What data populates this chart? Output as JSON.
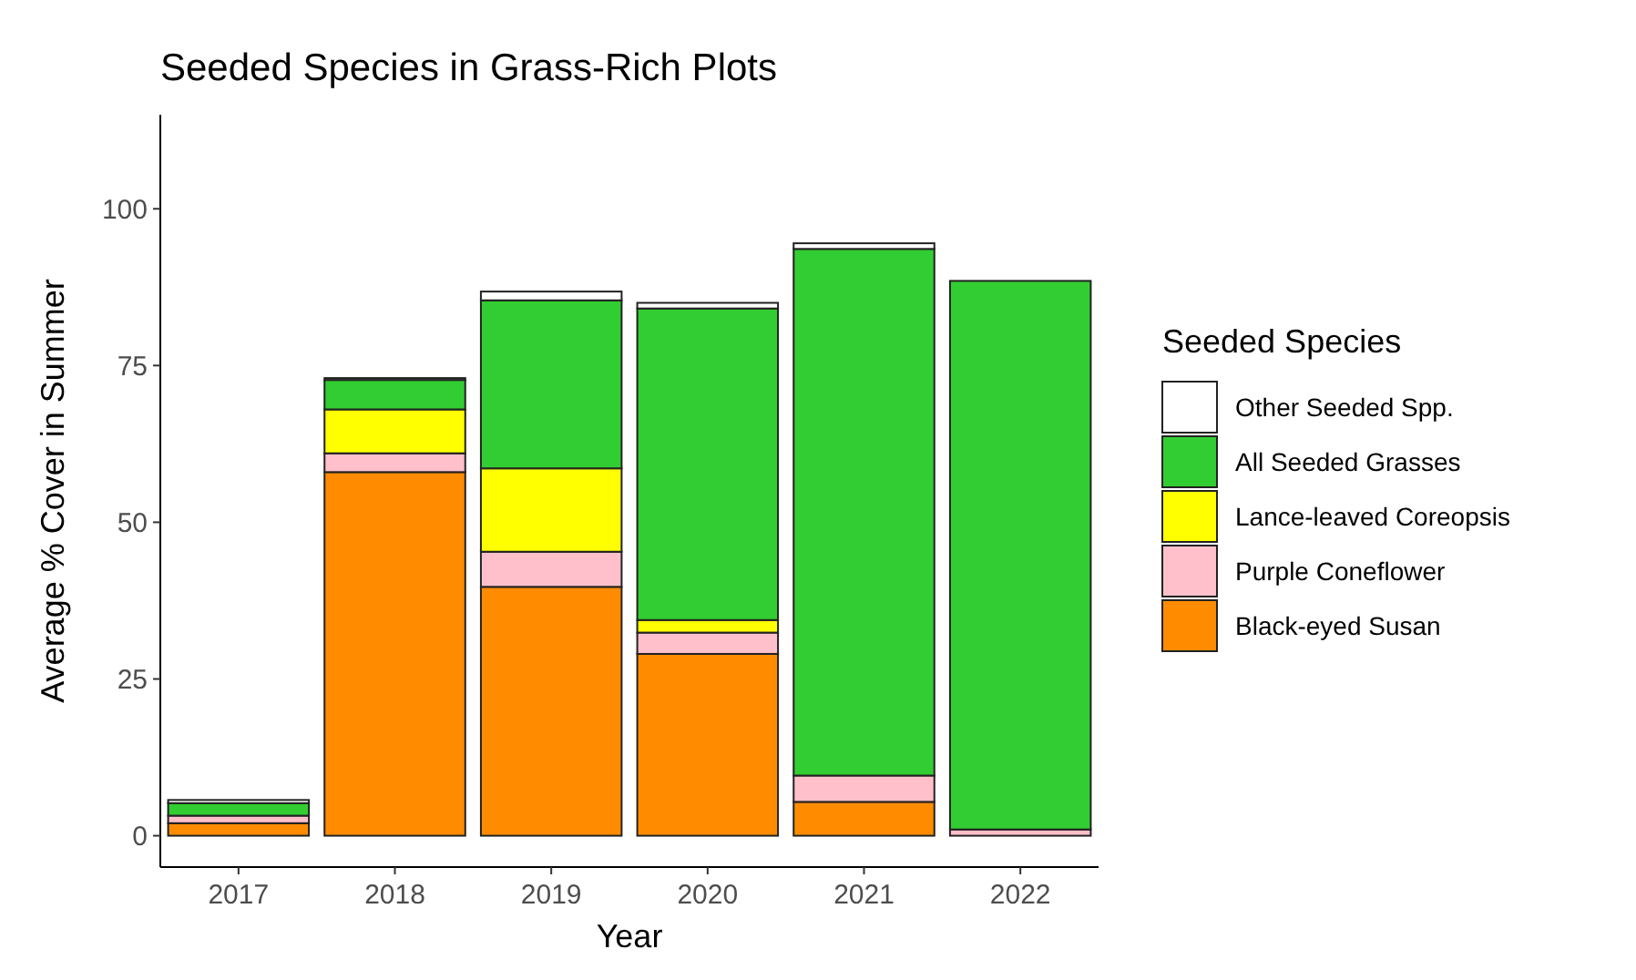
{
  "chart_data": {
    "type": "bar",
    "stacked": true,
    "title": "Seeded Species in Grass-Rich Plots",
    "xlabel": "Year",
    "ylabel": "Average % Cover in Summer",
    "legend_title": "Seeded Species",
    "legend": "right",
    "categories": [
      "2017",
      "2018",
      "2019",
      "2020",
      "2021",
      "2022"
    ],
    "series": [
      {
        "name": "Black-eyed Susan",
        "color": "#ff8c00",
        "values": [
          2,
          58,
          39.7,
          29,
          5.4,
          null
        ]
      },
      {
        "name": "Purple Coneflower",
        "color": "#ffc0cb",
        "values": [
          1.2,
          3,
          5.6,
          3.4,
          4.2,
          1
        ]
      },
      {
        "name": "Lance-leaved Coreopsis",
        "color": "#ffff00",
        "values": [
          null,
          7,
          13.3,
          2,
          null,
          0
        ]
      },
      {
        "name": "All Seeded Grasses",
        "color": "#32cd32",
        "values": [
          2,
          4.7,
          26.8,
          49.7,
          84,
          87.5
        ]
      },
      {
        "name": "Other Seeded Spp.",
        "color": "#ffffff",
        "values": [
          0.5,
          0.3,
          1.4,
          0.9,
          0.9,
          0
        ]
      }
    ],
    "ylim": [
      -5,
      115
    ],
    "yticks": [
      0,
      25,
      50,
      75,
      100
    ],
    "grid": false
  }
}
